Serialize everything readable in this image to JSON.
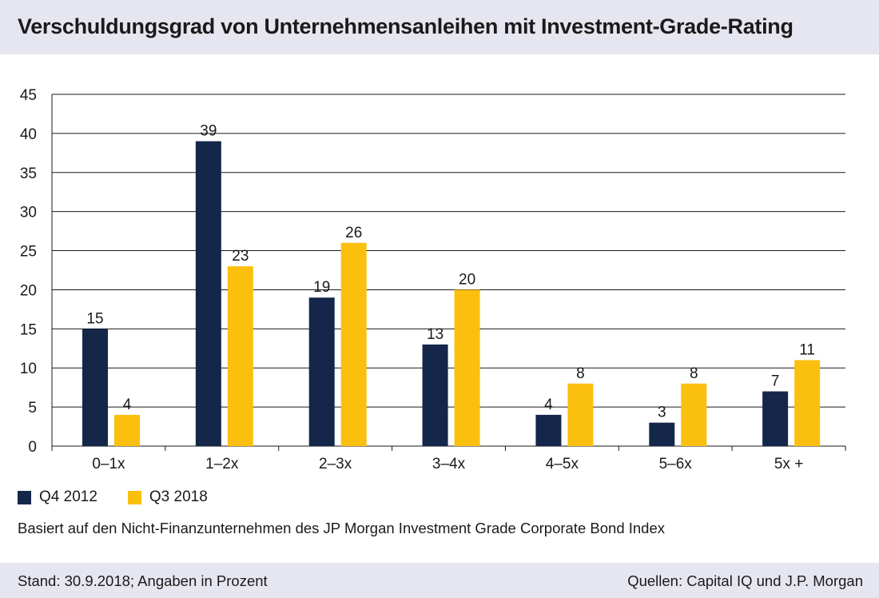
{
  "title": "Verschuldungsgrad von Unternehmensanleihen mit Investment-Grade-Rating",
  "note": "Basiert auf den Nicht-Finanzunternehmen des JP Morgan Investment Grade Corporate Bond Index",
  "footer": {
    "left": "Stand: 30.9.2018; Angaben in Prozent",
    "right": "Quellen: Capital IQ und J.P. Morgan"
  },
  "legend": [
    {
      "label": "Q4 2012",
      "color": "#14274a"
    },
    {
      "label": "Q3 2018",
      "color": "#fbbf0e"
    }
  ],
  "chart_data": {
    "type": "bar",
    "title": "Verschuldungsgrad von Unternehmensanleihen mit Investment-Grade-Rating",
    "xlabel": "",
    "ylabel": "",
    "categories": [
      "0–1x",
      "1–2x",
      "2–3x",
      "3–4x",
      "4–5x",
      "5–6x",
      "5x +"
    ],
    "series": [
      {
        "name": "Q4 2012",
        "color": "#14274a",
        "values": [
          15,
          39,
          19,
          13,
          4,
          3,
          7
        ]
      },
      {
        "name": "Q3 2018",
        "color": "#fbbf0e",
        "values": [
          4,
          23,
          26,
          20,
          8,
          8,
          11
        ]
      }
    ],
    "ylim": [
      0,
      45
    ],
    "yticks": [
      0,
      5,
      10,
      15,
      20,
      25,
      30,
      35,
      40,
      45
    ],
    "grid": true,
    "legend_position": "bottom-left"
  }
}
